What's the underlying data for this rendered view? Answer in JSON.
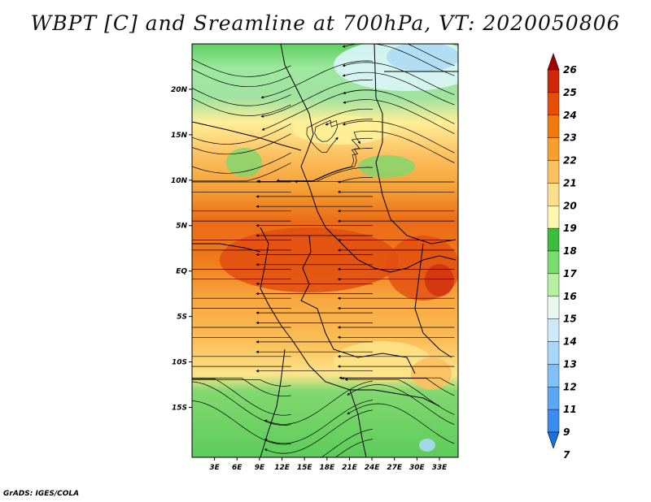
{
  "title": "WBPT [C] and Sreamline at 700hPa, VT: 2020050806",
  "credit": "GrADS: IGES/COLA",
  "map": {
    "lon_range": [
      0,
      35.5
    ],
    "lat_range": [
      -20.5,
      25
    ],
    "x_ticks": [
      "3E",
      "6E",
      "9E",
      "12E",
      "15E",
      "18E",
      "21E",
      "24E",
      "27E",
      "30E",
      "33E"
    ],
    "x_tick_values": [
      3,
      6,
      9,
      12,
      15,
      18,
      21,
      24,
      27,
      30,
      33
    ],
    "y_ticks": [
      "20N",
      "15N",
      "10N",
      "5N",
      "EQ",
      "5S",
      "10S",
      "15S"
    ],
    "y_tick_values": [
      20,
      15,
      10,
      5,
      0,
      -5,
      -10,
      -15
    ]
  },
  "colorbar": {
    "levels": [
      "7",
      "9",
      "11",
      "12",
      "13",
      "14",
      "15",
      "16",
      "17",
      "18",
      "19",
      "20",
      "21",
      "22",
      "23",
      "24",
      "25",
      "26"
    ],
    "colors": [
      "#1e6fe0",
      "#3a8cf0",
      "#5aa8f5",
      "#80c0f8",
      "#a6d6fa",
      "#cdeafc",
      "#e8f8f0",
      "#b4f0a0",
      "#78dc6c",
      "#3cbc3c",
      "#fff7b0",
      "#fde08c",
      "#fbc060",
      "#f7a030",
      "#ef7a10",
      "#e64e08",
      "#d02808",
      "#a80000"
    ]
  },
  "legend": {
    "type": "colorbar",
    "placement": "right"
  }
}
